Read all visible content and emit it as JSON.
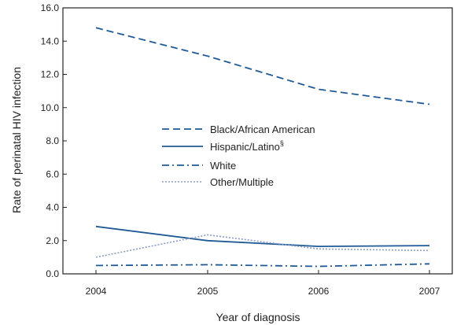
{
  "chart_data": {
    "type": "line",
    "xlabel": "Year of diagnosis",
    "ylabel": "Rate of perinatal HIV infection",
    "x": [
      "2004",
      "2005",
      "2006",
      "2007"
    ],
    "yticks": [
      "0.0",
      "2.0",
      "4.0",
      "6.0",
      "8.0",
      "10.0",
      "12.0",
      "14.0",
      "16.0"
    ],
    "ylim": [
      0,
      16
    ],
    "grid": false,
    "legend_position": "center",
    "series": [
      {
        "name": "Black/African American",
        "values": [
          14.8,
          13.1,
          11.1,
          10.2
        ],
        "color": "#1f5a96",
        "dash": "dashed"
      },
      {
        "name": "Hispanic/Latino",
        "superscript": "§",
        "values": [
          2.85,
          2.0,
          1.65,
          1.7
        ],
        "color": "#1f5a96",
        "dash": "solid"
      },
      {
        "name": "White",
        "values": [
          0.5,
          0.55,
          0.45,
          0.6
        ],
        "color": "#1f5a96",
        "dash": "dashdot"
      },
      {
        "name": "Other/Multiple",
        "values": [
          1.0,
          2.35,
          1.5,
          1.4
        ],
        "color": "#8a9cc4",
        "dash": "dotted"
      }
    ]
  }
}
